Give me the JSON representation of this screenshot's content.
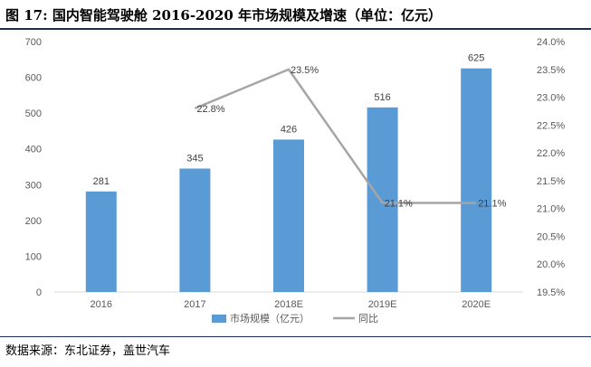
{
  "title": "图  17:  国内智能驾驶舱 2016-2020 年市场规模及增速（单位：亿元）",
  "source": "数据来源：东北证券，盖世汽车",
  "colors": {
    "bar": "#5b9bd5",
    "line": "#a5a5a5",
    "axis_text": "#595959",
    "rule": "#1a2d5a"
  },
  "chart_data": {
    "type": "bar",
    "title": "",
    "categories": [
      "2016",
      "2017",
      "2018E",
      "2019E",
      "2020E"
    ],
    "series": [
      {
        "name": "市场规模（亿元）",
        "type": "bar",
        "axis": "left",
        "values": [
          281,
          345,
          426,
          516,
          625
        ],
        "labels": [
          "281",
          "345",
          "426",
          "516",
          "625"
        ]
      },
      {
        "name": "同比",
        "type": "line",
        "axis": "right",
        "values": [
          null,
          22.8,
          23.5,
          21.1,
          21.1
        ],
        "labels": [
          "",
          "22.8%",
          "23.5%",
          "21.1%",
          "21.1%"
        ]
      }
    ],
    "y_left": {
      "min": 0,
      "max": 700,
      "step": 100,
      "ticks": [
        "0",
        "100",
        "200",
        "300",
        "400",
        "500",
        "600",
        "700"
      ]
    },
    "y_right": {
      "min": 19.5,
      "max": 24.0,
      "step": 0.5,
      "ticks": [
        "19.5%",
        "20.0%",
        "20.5%",
        "21.0%",
        "21.5%",
        "22.0%",
        "22.5%",
        "23.0%",
        "23.5%",
        "24.0%"
      ]
    },
    "grid": false,
    "legend_position": "bottom"
  }
}
